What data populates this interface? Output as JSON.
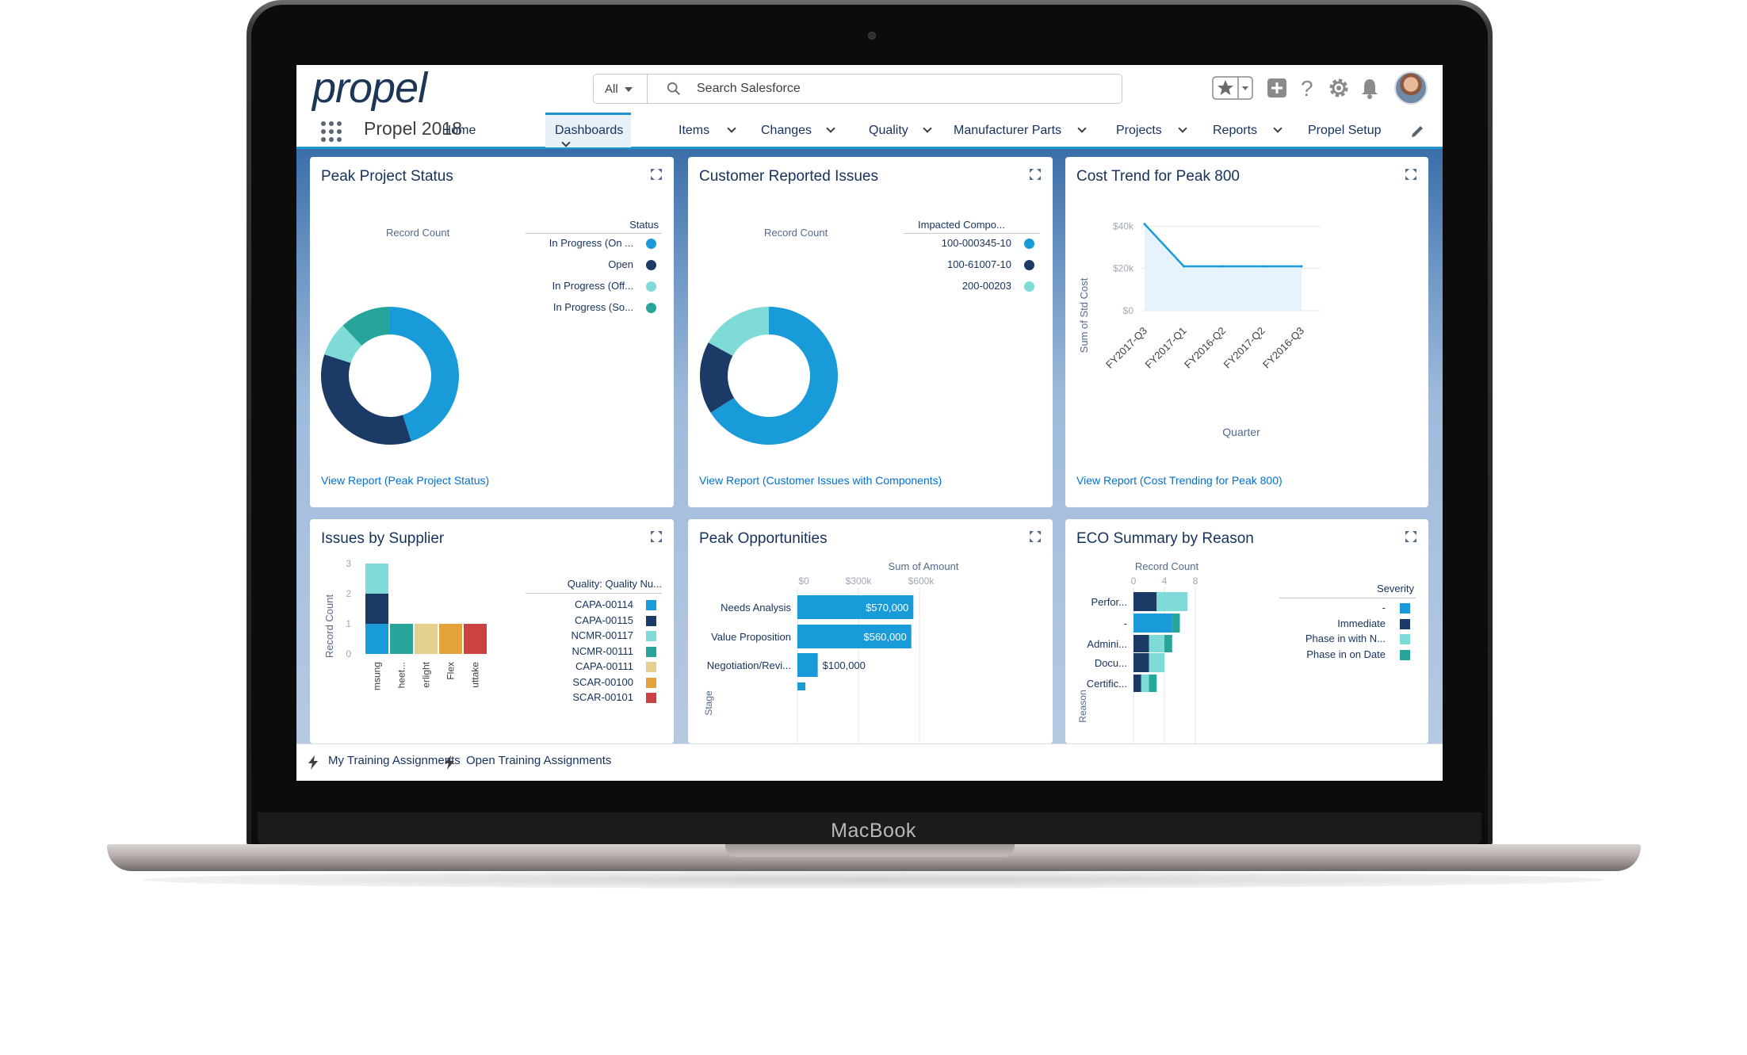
{
  "device": {
    "brand": "MacBook"
  },
  "header": {
    "logo": "propel",
    "search_scope": "All",
    "search_placeholder": "Search Salesforce"
  },
  "nav": {
    "app_name": "Propel 2018",
    "tabs": [
      {
        "label": "Home",
        "has_menu": false
      },
      {
        "label": "Dashboards",
        "has_menu": true,
        "selected": true
      },
      {
        "label": "Items",
        "has_menu": true
      },
      {
        "label": "Changes",
        "has_menu": true
      },
      {
        "label": "Quality",
        "has_menu": true
      },
      {
        "label": "Manufacturer Parts",
        "has_menu": true
      },
      {
        "label": "Projects",
        "has_menu": true
      },
      {
        "label": "Reports",
        "has_menu": true
      },
      {
        "label": "Propel Setup",
        "has_menu": false
      }
    ]
  },
  "colors": {
    "blue": "#1a9bd9",
    "navy": "#1b3a66",
    "light_teal": "#7edbd8",
    "teal": "#27a59a",
    "sand": "#e3cf8e",
    "orange": "#e3a33a",
    "red": "#cc4242",
    "link": "#0070d2"
  },
  "cards": {
    "peak_project": {
      "title": "Peak Project Status",
      "chart_caption": "Record Count",
      "legend_title": "Status",
      "legend": [
        "In Progress (On ...",
        "Open",
        "In Progress (Off...",
        "In Progress (So..."
      ],
      "link": "View Report (Peak Project Status)"
    },
    "customer_issues": {
      "title": "Customer Reported Issues",
      "chart_caption": "Record Count",
      "legend_title": "Impacted Compo...",
      "legend": [
        "100-000345-10",
        "100-61007-10",
        "200-00203"
      ],
      "link": "View Report (Customer Issues with Components)"
    },
    "cost_trend": {
      "title": "Cost Trend for Peak 800",
      "ylabel": "Sum of Std Cost",
      "xlabel": "Quarter",
      "y_ticks": [
        "$40k",
        "$20k",
        "$0"
      ],
      "x_ticks": [
        "FY2017-Q3",
        "FY2017-Q1",
        "FY2016-Q2",
        "FY2017-Q2",
        "FY2016-Q3"
      ],
      "link": "View Report (Cost Trending for Peak 800)"
    },
    "issues_supplier": {
      "title": "Issues by Supplier",
      "ylabel": "Record Count",
      "y_ticks": [
        "3",
        "2",
        "1",
        "0"
      ],
      "x_ticks": [
        "msung",
        "heet...",
        "erlight",
        "Flex",
        "uttake"
      ],
      "legend_title": "Quality: Quality Nu...",
      "legend": [
        "CAPA-00114",
        "CAPA-00115",
        "NCMR-00117",
        "NCMR-00111",
        "CAPA-00111",
        "SCAR-00100",
        "SCAR-00101"
      ]
    },
    "peak_opps": {
      "title": "Peak Opportunities",
      "xlabel": "Sum of Amount",
      "x_ticks": [
        "$0",
        "$300k",
        "$600k"
      ],
      "ylabel": "Stage",
      "rows": [
        "Needs Analysis",
        "Value Proposition",
        "Negotiation/Revi..."
      ],
      "bar_labels": [
        "$570,000",
        "$560,000",
        "$100,000"
      ]
    },
    "eco_summary": {
      "title": "ECO Summary by Reason",
      "xlabel": "Record Count",
      "x_ticks": [
        "0",
        "4",
        "8"
      ],
      "ylabel": "Reason",
      "rows": [
        "Perfor...",
        "-",
        "Admini...",
        "Docu...",
        "Certific..."
      ],
      "legend_title": "Severity",
      "legend": [
        "-",
        "Immediate",
        "Phase in with N...",
        "Phase in on Date"
      ]
    }
  },
  "chart_data": [
    {
      "type": "pie",
      "title": "Peak Project Status",
      "categories": [
        "In Progress (On ...",
        "Open",
        "In Progress (Off...",
        "In Progress (So..."
      ],
      "values": [
        45,
        35,
        8,
        12
      ]
    },
    {
      "type": "pie",
      "title": "Customer Reported Issues",
      "categories": [
        "100-000345-10",
        "100-61007-10",
        "200-00203"
      ],
      "values": [
        66,
        17,
        17
      ]
    },
    {
      "type": "area",
      "title": "Cost Trend for Peak 800",
      "xlabel": "Quarter",
      "ylabel": "Sum of Std Cost",
      "categories": [
        "FY2017-Q3",
        "FY2017-Q1",
        "FY2016-Q2",
        "FY2017-Q2",
        "FY2016-Q3"
      ],
      "values": [
        41000,
        21000,
        21000,
        21000,
        21000
      ],
      "ylim": [
        0,
        45000
      ]
    },
    {
      "type": "bar",
      "title": "Issues by Supplier",
      "ylabel": "Record Count",
      "categories": [
        "msung",
        "heet...",
        "erlight",
        "Flex",
        "uttake"
      ],
      "stacked": true,
      "series": [
        {
          "name": "CAPA-00114",
          "values": [
            1,
            0,
            0,
            0,
            0
          ]
        },
        {
          "name": "CAPA-00115",
          "values": [
            1,
            0,
            0,
            0,
            0
          ]
        },
        {
          "name": "NCMR-00117",
          "values": [
            1,
            0,
            0,
            0,
            0
          ]
        },
        {
          "name": "NCMR-00111",
          "values": [
            0,
            1,
            0,
            0,
            0
          ]
        },
        {
          "name": "CAPA-00111",
          "values": [
            0,
            0,
            1,
            0,
            0
          ]
        },
        {
          "name": "SCAR-00100",
          "values": [
            0,
            0,
            0,
            1,
            0
          ]
        },
        {
          "name": "SCAR-00101",
          "values": [
            0,
            0,
            0,
            0,
            1
          ]
        }
      ],
      "ylim": [
        0,
        3
      ]
    },
    {
      "type": "bar",
      "title": "Peak Opportunities",
      "xlabel": "Sum of Amount",
      "ylabel": "Stage",
      "orientation": "horizontal",
      "categories": [
        "Needs Analysis",
        "Value Proposition",
        "Negotiation/Revi..."
      ],
      "values": [
        570000,
        560000,
        100000
      ],
      "xlim": [
        0,
        600000
      ]
    },
    {
      "type": "bar",
      "title": "ECO Summary by Reason",
      "xlabel": "Record Count",
      "ylabel": "Reason",
      "orientation": "horizontal",
      "stacked": true,
      "categories": [
        "Perfor...",
        "-",
        "Admini...",
        "Docu...",
        "Certific..."
      ],
      "series": [
        {
          "name": "-",
          "values": [
            0,
            5,
            0,
            0,
            0
          ]
        },
        {
          "name": "Immediate",
          "values": [
            3,
            0,
            2,
            2,
            1
          ]
        },
        {
          "name": "Phase in with N...",
          "values": [
            4,
            0,
            2,
            2,
            1
          ]
        },
        {
          "name": "Phase in on Date",
          "values": [
            0,
            1,
            1,
            0,
            1
          ]
        }
      ],
      "xlim": [
        0,
        8
      ]
    }
  ],
  "utility_bar": {
    "items": [
      "My Training Assignments",
      "Open Training Assignments"
    ]
  }
}
